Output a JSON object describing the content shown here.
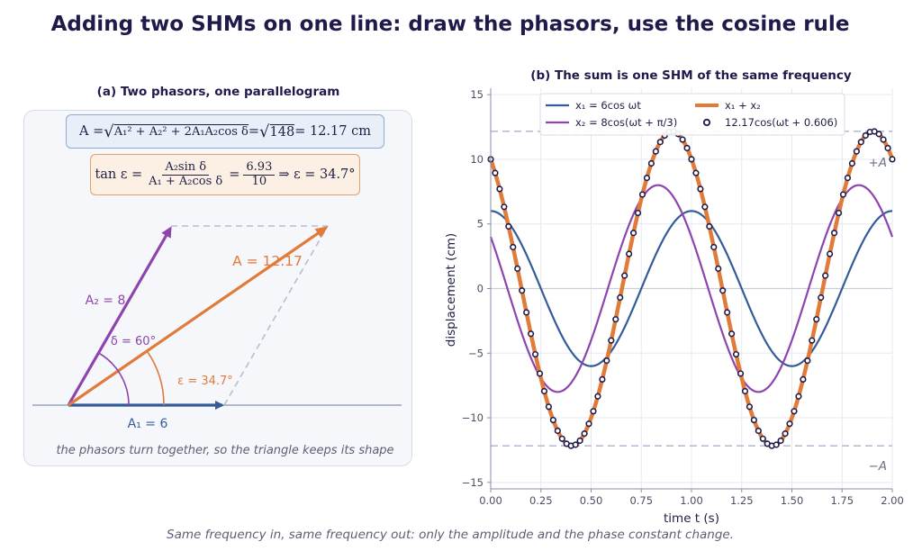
{
  "title": "Adding two SHMs on one line: draw the phasors, use the cosine rule",
  "footnote": "Same frequency in, same frequency out: only the amplitude and the phase constant change.",
  "colors": {
    "x1": "#335c99",
    "x2": "#8e44ad",
    "sum": "#e07b39",
    "samples": "#1e1b4b",
    "guide": "#b8bdd0"
  },
  "panel_a": {
    "title": "(a)  Two phasors, one parallelogram",
    "formula_amp": {
      "lhs": "A = ",
      "root_body": "A₁² + A₂² + 2A₁A₂cos δ",
      "eq2": " = ",
      "root_value": "148",
      "result": " = 12.17 cm"
    },
    "formula_phase": {
      "lhs": "tan ε = ",
      "num": "A₂sin δ",
      "den": "A₁ + A₂cos δ",
      "eq": " = ",
      "num2": "6.93",
      "den2": "10",
      "result": " ⇒ ε = 34.7°"
    },
    "labels": {
      "A1": "A₁ = 6",
      "A2": "A₂ = 8",
      "A": "A = 12.17",
      "delta": "δ = 60°",
      "epsilon": "ε = 34.7°"
    },
    "values": {
      "A1": 6,
      "A2": 8,
      "delta_deg": 60,
      "A": 12.17,
      "epsilon_deg": 34.7
    },
    "note": "the phasors turn together, so the triangle keeps its shape"
  },
  "chart_data": {
    "type": "line",
    "title": "(b)  The sum is one SHM of the same frequency",
    "xlabel": "time t (s)",
    "ylabel": "displacement (cm)",
    "xlim": [
      0,
      2
    ],
    "ylim": [
      -15.5,
      15.5
    ],
    "xticks": [
      "0.00",
      "0.25",
      "0.50",
      "0.75",
      "1.00",
      "1.25",
      "1.50",
      "1.75",
      "2.00"
    ],
    "yticks": [
      "−15",
      "−10",
      "−5",
      "0",
      "5",
      "10",
      "15"
    ],
    "grid": true,
    "legend_position": "top",
    "period": 1,
    "series": [
      {
        "name": "x₁ = 6cos ωt",
        "amplitude": 6,
        "phase": 0
      },
      {
        "name": "x₂ = 8cos(ωt + π/3)",
        "amplitude": 8,
        "phase": 1.0472
      },
      {
        "name": "x₁ + x₂",
        "amplitude": 12.17,
        "phase": 0.606
      },
      {
        "name": "12.17cos(ωt + 0.606)",
        "amplitude": 12.17,
        "phase": 0.606,
        "style": "markers"
      }
    ],
    "reference_lines": [
      {
        "label": "+A",
        "y": 12.17
      },
      {
        "label": "−A",
        "y": -12.17
      }
    ]
  }
}
